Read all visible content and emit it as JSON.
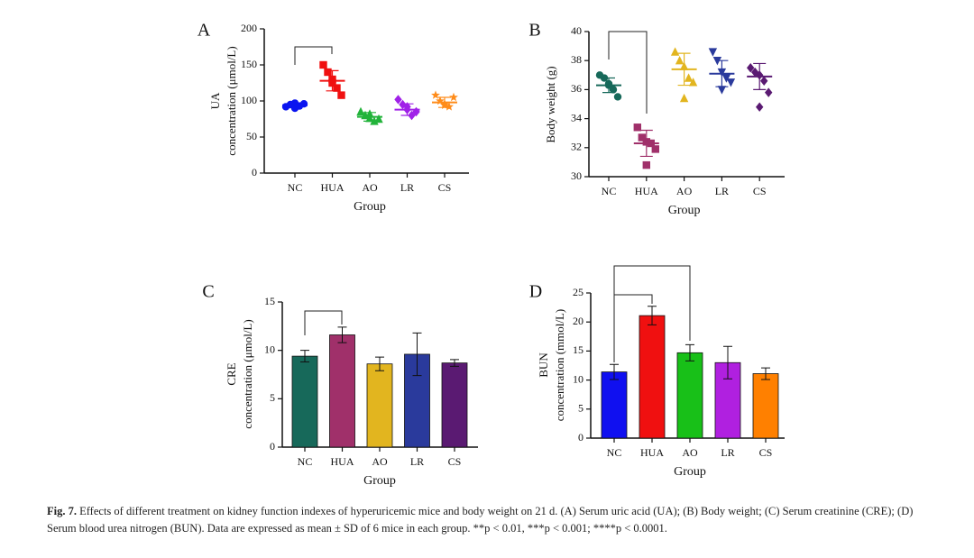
{
  "chart_data": [
    {
      "type": "dotplot",
      "label": "A",
      "ylabel": [
        "UA",
        "concentration (μmol/L)"
      ],
      "xlabel": "Group",
      "categories": [
        "NC",
        "HUA",
        "AO",
        "LR",
        "CS"
      ],
      "colors": [
        "#0a14f0",
        "#f01010",
        "#22b33a",
        "#a021e8",
        "#ff8c1a"
      ],
      "points": [
        [
          92,
          95,
          97,
          93,
          96,
          90
        ],
        [
          150,
          140,
          130,
          118,
          108,
          125
        ],
        [
          85,
          80,
          76,
          72,
          75,
          82
        ],
        [
          102,
          95,
          88,
          80,
          85,
          92
        ],
        [
          108,
          100,
          96,
          92,
          105,
          94
        ]
      ],
      "means": [
        94,
        128,
        78,
        88,
        98
      ],
      "sds": [
        3,
        14,
        6,
        8,
        7
      ],
      "ylim": [
        0,
        200
      ],
      "yticks": [
        0,
        50,
        100,
        150,
        200
      ]
    },
    {
      "type": "dotplot",
      "label": "B",
      "ylabel": [
        "Body weight (g)"
      ],
      "xlabel": "Group",
      "categories": [
        "NC",
        "HUA",
        "AO",
        "LR",
        "CS"
      ],
      "colors": [
        "#17695a",
        "#a0306a",
        "#e2b51f",
        "#2a3a9c",
        "#5a1a72"
      ],
      "points": [
        [
          37.0,
          36.8,
          36.4,
          36.0,
          35.5,
          36.3
        ],
        [
          33.4,
          32.7,
          32.4,
          32.3,
          31.9,
          30.8
        ],
        [
          38.6,
          38.0,
          37.6,
          36.8,
          36.5,
          35.4
        ],
        [
          38.6,
          38.0,
          37.2,
          36.8,
          36.5,
          36.0
        ],
        [
          37.5,
          37.2,
          37.0,
          36.6,
          35.8,
          34.8
        ]
      ],
      "means": [
        36.3,
        32.3,
        37.4,
        37.1,
        36.9
      ],
      "sds": [
        0.5,
        0.9,
        1.1,
        0.9,
        0.9
      ],
      "ylim": [
        30,
        40
      ],
      "yticks": [
        30,
        32,
        34,
        36,
        38,
        40
      ]
    },
    {
      "type": "bar",
      "label": "C",
      "ylabel": [
        "CRE",
        "concentration (μmol/L)"
      ],
      "xlabel": "Group",
      "categories": [
        "NC",
        "HUA",
        "AO",
        "LR",
        "CS"
      ],
      "colors": [
        "#17695a",
        "#a0306a",
        "#e2b51f",
        "#2a3a9c",
        "#5a1a72"
      ],
      "values": [
        9.4,
        11.6,
        8.6,
        9.6,
        8.7
      ],
      "errors": [
        0.6,
        0.8,
        0.7,
        2.2,
        0.35
      ],
      "ylim": [
        0,
        15
      ],
      "yticks": [
        0,
        5,
        10,
        15
      ]
    },
    {
      "type": "bar",
      "label": "D",
      "ylabel": [
        "BUN",
        "concentration (mmol/L)"
      ],
      "xlabel": "Group",
      "categories": [
        "NC",
        "HUA",
        "AO",
        "LR",
        "CS"
      ],
      "colors": [
        "#1010f0",
        "#f01010",
        "#18c018",
        "#b020e0",
        "#ff8000"
      ],
      "values": [
        11.4,
        21.1,
        14.7,
        13.0,
        11.1
      ],
      "errors": [
        1.3,
        1.6,
        1.4,
        2.8,
        1.0
      ],
      "ylim": [
        0,
        25
      ],
      "yticks": [
        0,
        5,
        10,
        15,
        20,
        25
      ]
    }
  ],
  "caption": {
    "label": "Fig. 7.",
    "text": "Effects of different treatment on kidney function indexes of hyperuricemic mice and body weight on 21 d. (A) Serum uric acid (UA); (B) Body weight; (C) Serum creatinine (CRE); (D) Serum blood urea nitrogen (BUN). Data are expressed as mean ± SD of 6 mice in each group. **p < 0.01, ***p < 0.001; ****p < 0.0001."
  }
}
